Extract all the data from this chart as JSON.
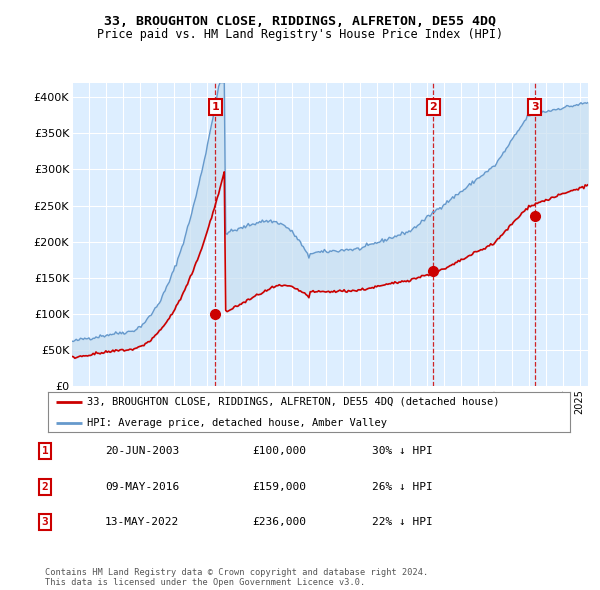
{
  "title": "33, BROUGHTON CLOSE, RIDDINGS, ALFRETON, DE55 4DQ",
  "subtitle": "Price paid vs. HM Land Registry's House Price Index (HPI)",
  "ylim": [
    0,
    420000
  ],
  "yticks": [
    0,
    50000,
    100000,
    150000,
    200000,
    250000,
    300000,
    350000,
    400000
  ],
  "ytick_labels": [
    "£0",
    "£50K",
    "£100K",
    "£150K",
    "£200K",
    "£250K",
    "£300K",
    "£350K",
    "£400K"
  ],
  "background_color": "#ffffff",
  "plot_bg_color": "#ddeeff",
  "grid_color": "#ffffff",
  "hpi_color": "#6699cc",
  "hpi_fill_color": "#c8dff0",
  "price_color": "#cc0000",
  "vline_color": "#cc0000",
  "transaction_points": [
    {
      "date_num": 2003.47,
      "price": 100000,
      "label": "1"
    },
    {
      "date_num": 2016.36,
      "price": 159000,
      "label": "2"
    },
    {
      "date_num": 2022.36,
      "price": 236000,
      "label": "3"
    }
  ],
  "transaction_table": [
    {
      "num": "1",
      "date": "20-JUN-2003",
      "price": "£100,000",
      "hpi": "30% ↓ HPI"
    },
    {
      "num": "2",
      "date": "09-MAY-2016",
      "price": "£159,000",
      "hpi": "26% ↓ HPI"
    },
    {
      "num": "3",
      "date": "13-MAY-2022",
      "price": "£236,000",
      "hpi": "22% ↓ HPI"
    }
  ],
  "legend_house_label": "33, BROUGHTON CLOSE, RIDDINGS, ALFRETON, DE55 4DQ (detached house)",
  "legend_hpi_label": "HPI: Average price, detached house, Amber Valley",
  "footer": "Contains HM Land Registry data © Crown copyright and database right 2024.\nThis data is licensed under the Open Government Licence v3.0.",
  "xmin": 1995.0,
  "xmax": 2025.5
}
